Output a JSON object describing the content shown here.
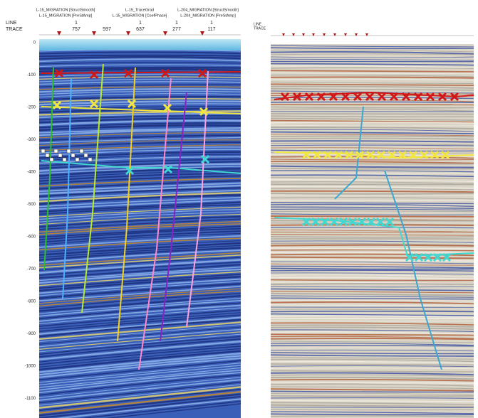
{
  "left_panel": {
    "headers": [
      [
        "L-15_MIGRATION [StructSmooth]",
        "L-15_MIGRATION [PreStAmp]"
      ],
      [
        "L-15_TraceGrad",
        "L-15_MIGRATION [CoefPhase]"
      ],
      [
        "L-204_MIGRATION [StructSmooth]",
        "L-204_MIGRATION [PreStAmp]"
      ]
    ],
    "line_label": "LINE",
    "trace_label": "TRACE",
    "line_values": [
      "1",
      "1",
      "1",
      "1"
    ],
    "trace_values": [
      "757",
      "597",
      "637",
      "277",
      "117"
    ],
    "y_labels": [
      "0",
      "-100",
      "-200",
      "-300",
      "-400",
      "-500",
      "-600",
      "-700",
      "-800",
      "-900",
      "-1000",
      "-1100"
    ]
  },
  "right_panel": {
    "line_label": "LINE",
    "trace_label": "TRACE"
  }
}
